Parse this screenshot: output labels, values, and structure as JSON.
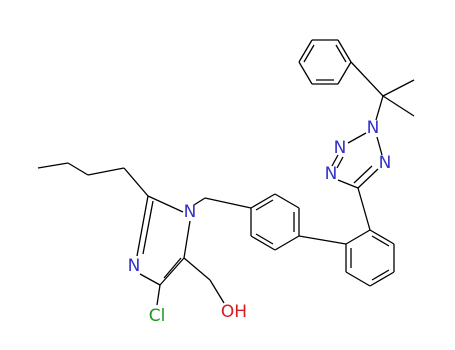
{
  "atoms": [
    {
      "label": "N"
    },
    {
      "label": "N"
    },
    {
      "label": "N"
    },
    {
      "label": "N"
    },
    {
      "label": "N"
    },
    {
      "label": "N"
    },
    {
      "label": "Cl"
    },
    {
      "label": "OH"
    }
  ]
}
